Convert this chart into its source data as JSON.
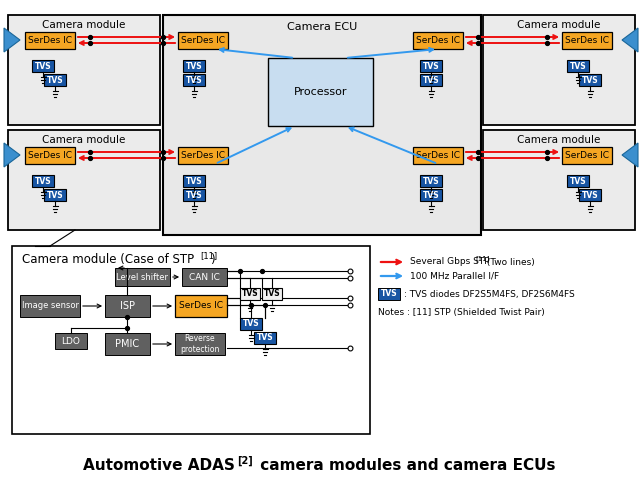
{
  "bg_color": "#ffffff",
  "light_gray_bg": "#ebebeb",
  "ecu_bg": "#e8e8e8",
  "dark_gray_box": "#606060",
  "orange_box": "#f5a623",
  "blue_tvs": "#1855a3",
  "processor_box": "#c8ddf0",
  "red_arrow": "#ee1111",
  "blue_arrow": "#3399ee",
  "blue_tri": "#3b8fce",
  "title_bold": true,
  "cam_module_label": "Camera module",
  "ecu_label": "Camera ECU",
  "processor_label": "Processor",
  "serdes_label": "SerDes IC",
  "tvs_label": "TVS",
  "det_title": "Camera module (Case of STP",
  "det_title_super": "[11]",
  "det_title_close": ")",
  "legend_red": "Several Gbps STP",
  "legend_red_super": "[11]",
  "legend_red_tail": " (Two lines)",
  "legend_blue": "100 MHz Parallel I/F",
  "legend_tvs_text": ": TVS diodes DF2S5M4FS, DF2S6M4FS",
  "legend_note": "Notes : [11] STP (Shielded Twist Pair)",
  "main_title": "Automotive ADAS",
  "main_title_super": "[2]",
  "main_title_tail": " camera modules and camera ECUs"
}
